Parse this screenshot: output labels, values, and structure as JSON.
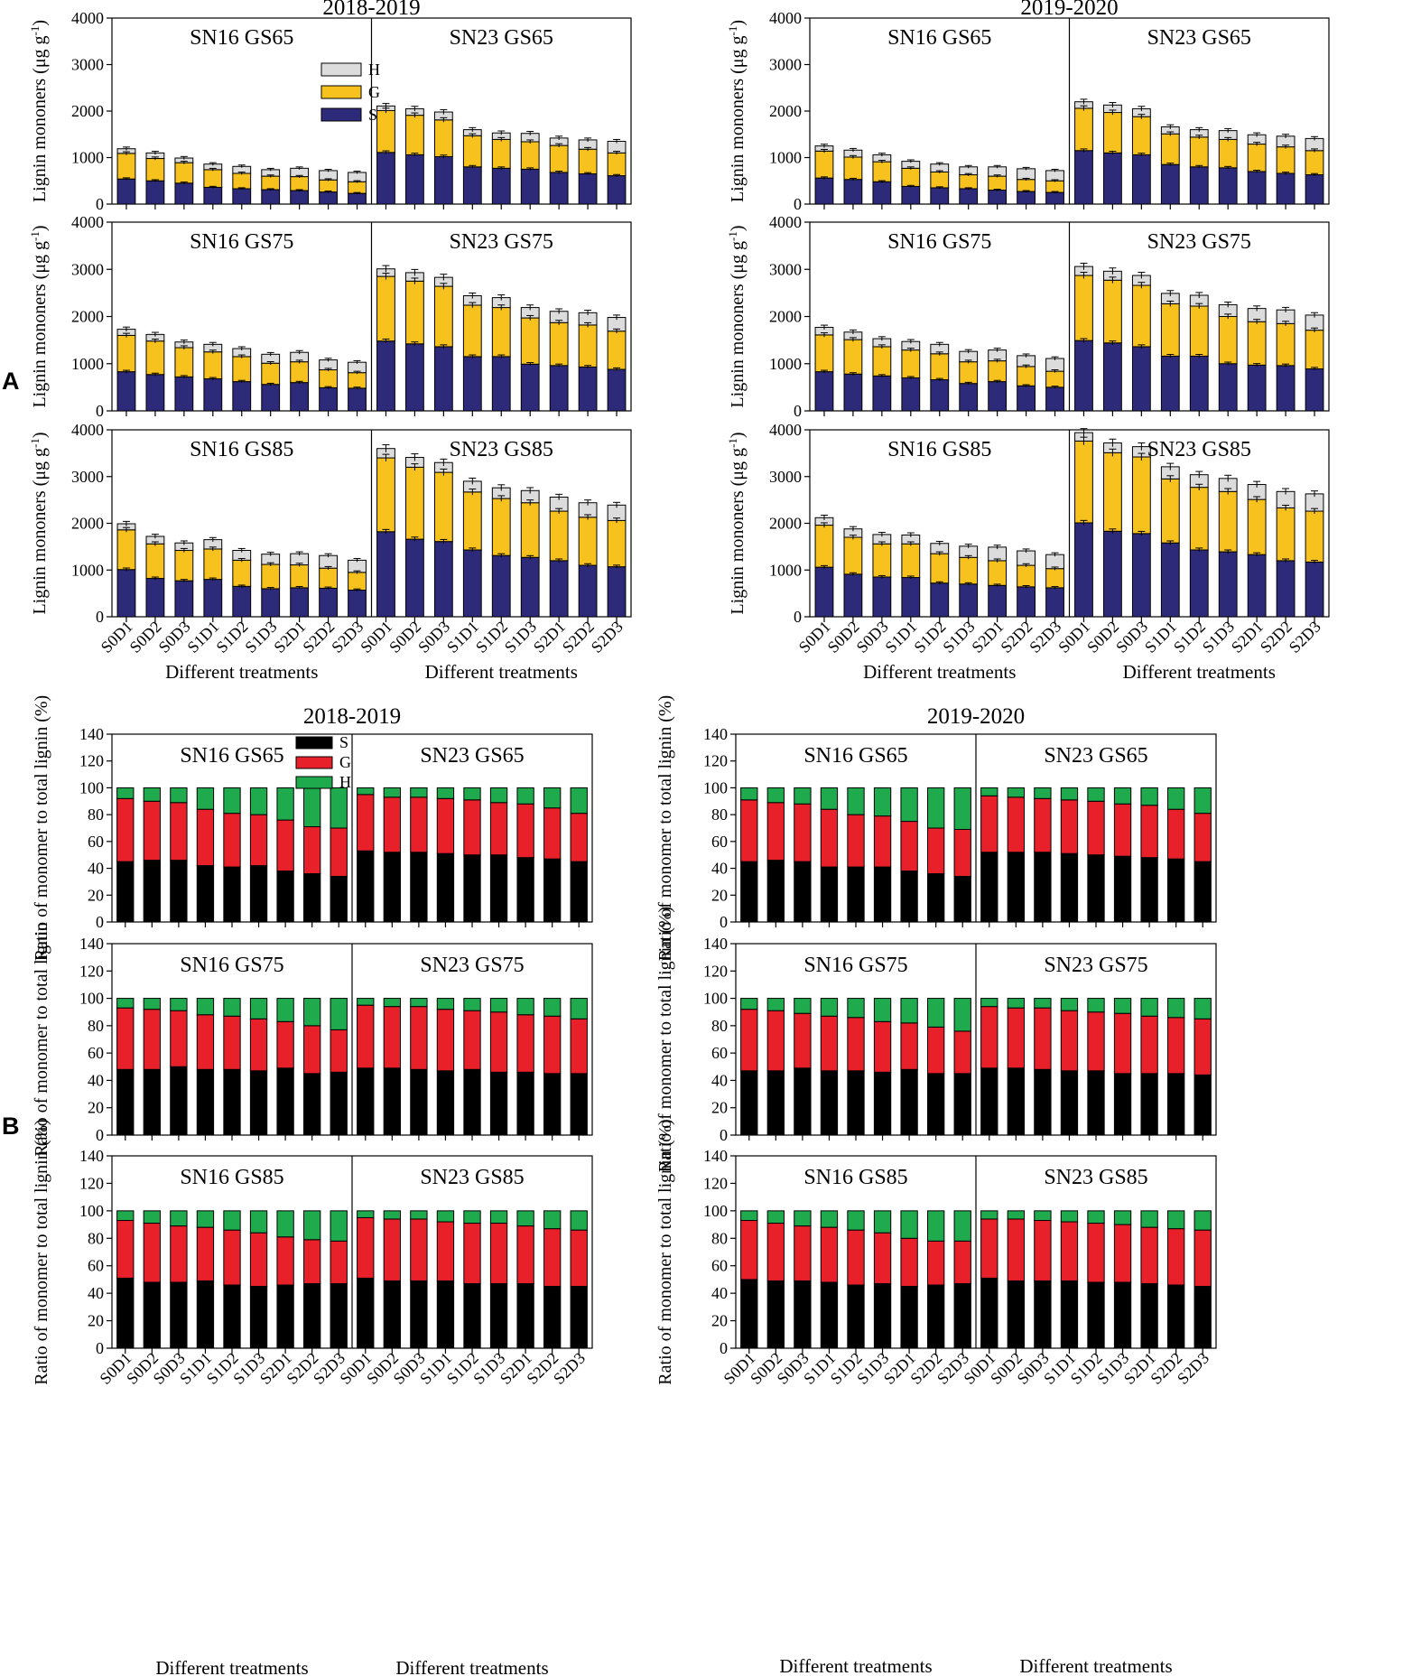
{
  "panel_letters": {
    "a": "A",
    "b": "B"
  },
  "colors": {
    "lignin_S": "#2e2a7a",
    "lignin_G": "#f7c21e",
    "lignin_H": "#dcdcdc",
    "ratio_S": "#000000",
    "ratio_G": "#e8202a",
    "ratio_H": "#1faa4d"
  },
  "chart_data": [
    {
      "section": "A",
      "type": "bar",
      "stacked": true,
      "years": [
        "2018-2019",
        "2019-2020"
      ],
      "ylabel": "Lignin mononers (μg g⁻¹)",
      "ylabel_parts": {
        "main": "Lignin mononers (μg g",
        "sup": "-1",
        "close": ")"
      },
      "xlabel": "Different treatments",
      "ylim": [
        0,
        4000
      ],
      "yticks": [
        "0",
        "1000",
        "2000",
        "3000",
        "4000"
      ],
      "categories": [
        "S0D1",
        "S0D2",
        "S0D3",
        "S1D1",
        "S1D2",
        "S1D3",
        "S2D1",
        "S2D2",
        "S2D3"
      ],
      "legend": [
        "H",
        "G",
        "S"
      ],
      "cultivars": [
        "SN16",
        "SN23"
      ],
      "stages": [
        "GS65",
        "GS75",
        "GS85"
      ],
      "panels": {
        "2018-2019": {
          "GS65": {
            "SN16": {
              "S": [
                540,
                500,
                450,
                360,
                330,
                310,
                290,
                260,
                230
              ],
              "G": [
                1090,
                980,
                890,
                740,
                660,
                600,
                590,
                520,
                480
              ],
              "H": [
                1190,
                1100,
                990,
                860,
                810,
                740,
                770,
                720,
                680
              ]
            },
            "SN23": {
              "S": [
                1110,
                1060,
                1020,
                800,
                770,
                750,
                680,
                650,
                610
              ],
              "G": [
                2010,
                1910,
                1810,
                1470,
                1390,
                1340,
                1260,
                1180,
                1100
              ],
              "H": [
                2110,
                2050,
                1980,
                1600,
                1530,
                1520,
                1420,
                1380,
                1350
              ]
            }
          },
          "GS75": {
            "SN16": {
              "S": [
                830,
                770,
                720,
                680,
                620,
                560,
                600,
                490,
                480
              ],
              "G": [
                1600,
                1480,
                1340,
                1250,
                1150,
                1010,
                1040,
                870,
                810
              ],
              "H": [
                1730,
                1620,
                1460,
                1410,
                1320,
                1200,
                1240,
                1080,
                1030
              ]
            },
            "SN23": {
              "S": [
                1480,
                1420,
                1360,
                1150,
                1150,
                990,
                960,
                930,
                880
              ],
              "G": [
                2850,
                2750,
                2640,
                2240,
                2190,
                1970,
                1870,
                1820,
                1690
              ],
              "H": [
                3010,
                2930,
                2830,
                2440,
                2400,
                2190,
                2110,
                2080,
                1980
              ]
            }
          },
          "GS85": {
            "SN16": {
              "S": [
                1010,
                820,
                770,
                800,
                650,
                600,
                620,
                610,
                570
              ],
              "G": [
                1860,
                1560,
                1420,
                1450,
                1210,
                1120,
                1110,
                1040,
                950
              ],
              "H": [
                1990,
                1720,
                1580,
                1650,
                1420,
                1340,
                1350,
                1310,
                1210
              ]
            },
            "SN23": {
              "S": [
                1820,
                1660,
                1610,
                1430,
                1310,
                1270,
                1200,
                1100,
                1070
              ],
              "G": [
                3400,
                3200,
                3090,
                2670,
                2530,
                2440,
                2260,
                2130,
                2060
              ],
              "H": [
                3600,
                3410,
                3300,
                2900,
                2760,
                2700,
                2560,
                2440,
                2390
              ]
            }
          }
        },
        "2019-2020": {
          "GS65": {
            "SN16": {
              "S": [
                560,
                530,
                480,
                380,
                350,
                330,
                300,
                270,
                250
              ],
              "G": [
                1140,
                1010,
                910,
                770,
                690,
                630,
                600,
                530,
                500
              ],
              "H": [
                1250,
                1160,
                1060,
                920,
                860,
                800,
                800,
                760,
                720
              ]
            },
            "SN23": {
              "S": [
                1150,
                1100,
                1060,
                850,
                800,
                780,
                700,
                660,
                630
              ],
              "G": [
                2060,
                1970,
                1880,
                1510,
                1440,
                1390,
                1290,
                1230,
                1150
              ],
              "H": [
                2200,
                2130,
                2050,
                1660,
                1600,
                1580,
                1490,
                1460,
                1410
              ]
            }
          },
          "GS75": {
            "SN16": {
              "S": [
                830,
                780,
                740,
                700,
                660,
                580,
                620,
                530,
                500
              ],
              "G": [
                1610,
                1510,
                1360,
                1290,
                1210,
                1040,
                1060,
                940,
                840
              ],
              "H": [
                1770,
                1670,
                1530,
                1470,
                1410,
                1260,
                1290,
                1170,
                1110
              ]
            },
            "SN23": {
              "S": [
                1490,
                1440,
                1360,
                1160,
                1160,
                1000,
                970,
                960,
                890
              ],
              "G": [
                2870,
                2770,
                2660,
                2270,
                2220,
                2000,
                1890,
                1850,
                1710
              ],
              "H": [
                3060,
                2960,
                2870,
                2490,
                2450,
                2250,
                2170,
                2140,
                2030
              ]
            }
          },
          "GS85": {
            "SN16": {
              "S": [
                1060,
                910,
                850,
                840,
                720,
                700,
                670,
                640,
                620
              ],
              "G": [
                1960,
                1700,
                1560,
                1560,
                1350,
                1270,
                1200,
                1100,
                1030
              ],
              "H": [
                2120,
                1880,
                1760,
                1750,
                1570,
                1510,
                1490,
                1410,
                1330
              ]
            },
            "SN23": {
              "S": [
                2010,
                1830,
                1780,
                1580,
                1430,
                1390,
                1330,
                1200,
                1170
              ],
              "G": [
                3760,
                3510,
                3420,
                2950,
                2770,
                2680,
                2510,
                2330,
                2260
              ],
              "H": [
                3940,
                3720,
                3640,
                3210,
                3040,
                2960,
                2830,
                2680,
                2630
              ]
            }
          }
        }
      }
    },
    {
      "section": "B",
      "type": "bar",
      "stacked": true,
      "years": [
        "2018-2019",
        "2019-2020"
      ],
      "ylabel": "Ratio of monomer to total lignin (%)",
      "ylabels": {
        "2018-2019": {
          "GS65": "Ratio of monomer to total lignin (%)",
          "GS75": "Ratio of monomer to total lignin",
          "GS85": "Ratio of monomer to total lignin (%)"
        },
        "2019-2020": {
          "GS65": "Ratio of monomer to total lignin (%)",
          "GS75": "Ratio of monomer to total lignin (%)",
          "GS85": "Ratio of monomer to total lignin (%)"
        }
      },
      "xlabel": "Different treatments",
      "ylim": [
        0,
        140
      ],
      "yticks": [
        "0",
        "20",
        "40",
        "60",
        "80",
        "100",
        "120",
        "140"
      ],
      "categories": [
        "S0D1",
        "S0D2",
        "S0D3",
        "S1D1",
        "S1D2",
        "S1D3",
        "S2D1",
        "S2D2",
        "S2D3"
      ],
      "legend": [
        "S",
        "G",
        "H"
      ],
      "cultivars": [
        "SN16",
        "SN23"
      ],
      "stages": [
        "GS65",
        "GS75",
        "GS85"
      ],
      "panels": {
        "2018-2019": {
          "GS65": {
            "SN16": {
              "S": [
                45,
                46,
                46,
                42,
                41,
                42,
                38,
                36,
                34
              ],
              "SG": [
                92,
                90,
                89,
                84,
                81,
                80,
                76,
                71,
                70
              ]
            },
            "SN23": {
              "S": [
                53,
                52,
                52,
                51,
                50,
                50,
                48,
                47,
                45
              ],
              "SG": [
                95,
                93,
                93,
                92,
                91,
                89,
                88,
                85,
                81
              ]
            }
          },
          "GS75": {
            "SN16": {
              "S": [
                48,
                48,
                50,
                48,
                48,
                47,
                49,
                45,
                46
              ],
              "SG": [
                93,
                92,
                91,
                88,
                87,
                85,
                83,
                80,
                77
              ]
            },
            "SN23": {
              "S": [
                49,
                49,
                48,
                47,
                48,
                46,
                46,
                45,
                45
              ],
              "SG": [
                95,
                94,
                94,
                92,
                91,
                90,
                88,
                87,
                85
              ]
            }
          },
          "GS85": {
            "SN16": {
              "S": [
                51,
                48,
                48,
                49,
                46,
                45,
                46,
                47,
                47
              ],
              "SG": [
                93,
                91,
                89,
                88,
                86,
                84,
                81,
                79,
                78
              ]
            },
            "SN23": {
              "S": [
                51,
                49,
                49,
                49,
                47,
                47,
                47,
                45,
                45
              ],
              "SG": [
                95,
                94,
                94,
                92,
                91,
                91,
                89,
                87,
                86
              ]
            }
          }
        },
        "2019-2020": {
          "GS65": {
            "SN16": {
              "S": [
                45,
                46,
                45,
                41,
                41,
                41,
                38,
                36,
                34
              ],
              "SG": [
                91,
                89,
                88,
                84,
                80,
                79,
                75,
                70,
                69
              ]
            },
            "SN23": {
              "S": [
                52,
                52,
                52,
                51,
                50,
                49,
                48,
                47,
                45
              ],
              "SG": [
                94,
                93,
                92,
                91,
                90,
                88,
                87,
                84,
                81
              ]
            }
          },
          "GS75": {
            "SN16": {
              "S": [
                47,
                47,
                49,
                47,
                47,
                46,
                48,
                45,
                45
              ],
              "SG": [
                92,
                91,
                89,
                87,
                86,
                83,
                82,
                79,
                76
              ]
            },
            "SN23": {
              "S": [
                49,
                49,
                48,
                47,
                47,
                45,
                45,
                45,
                44
              ],
              "SG": [
                94,
                93,
                93,
                91,
                90,
                89,
                87,
                86,
                85
              ]
            }
          },
          "GS85": {
            "SN16": {
              "S": [
                50,
                49,
                49,
                48,
                46,
                47,
                45,
                46,
                47
              ],
              "SG": [
                93,
                91,
                89,
                88,
                86,
                84,
                80,
                78,
                78
              ]
            },
            "SN23": {
              "S": [
                51,
                49,
                49,
                49,
                48,
                48,
                47,
                46,
                45
              ],
              "SG": [
                94,
                94,
                93,
                92,
                91,
                90,
                88,
                87,
                86
              ]
            }
          }
        }
      }
    }
  ]
}
